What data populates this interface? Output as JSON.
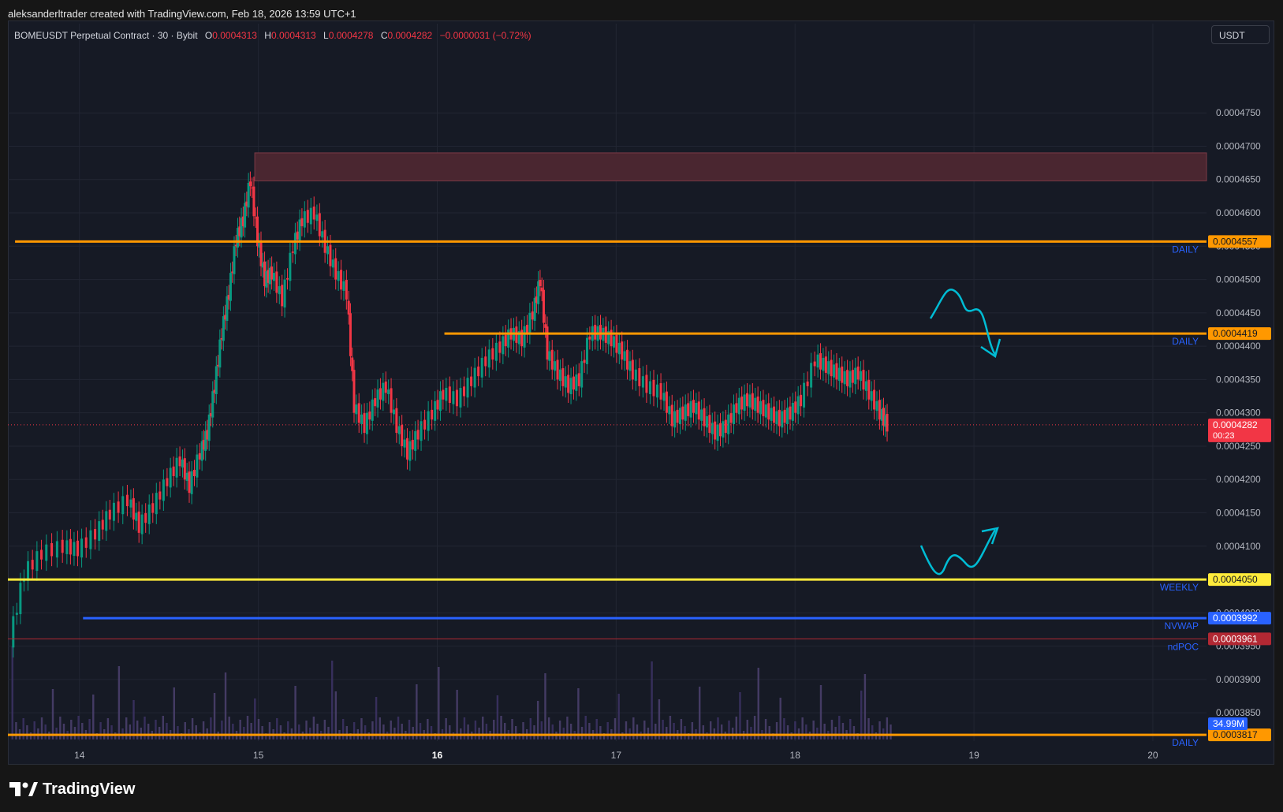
{
  "caption": "aleksanderltrader created with TradingView.com, Feb 18, 2026 13:59 UTC+1",
  "legend": {
    "symbol": "BOMEUSDT Perpetual Contract · 30 · Bybit",
    "o_label": "O",
    "o": "0.0004313",
    "h_label": "H",
    "h": "0.0004313",
    "l_label": "L",
    "l": "0.0004278",
    "c_label": "C",
    "c": "0.0004282",
    "change": "−0.0000031 (−0.72%)"
  },
  "currency": "USDT",
  "logo_text": "TradingView",
  "chart_data": {
    "type": "candlestick",
    "y_ticks": [
      "0.0003817",
      "0.0003850",
      "0.0003900",
      "0.0003950",
      "0.0004000",
      "0.0004050",
      "0.0004100",
      "0.0004150",
      "0.0004200",
      "0.0004250",
      "0.0004300",
      "0.0004350",
      "0.0004400",
      "0.0004450",
      "0.0004500",
      "0.0004550",
      "0.0004600",
      "0.0004650",
      "0.0004700",
      "0.0004750"
    ],
    "y_range": [
      0.000381,
      0.000482
    ],
    "x_ticks": [
      "14",
      "15",
      "16",
      "17",
      "18",
      "19",
      "20"
    ],
    "x_range": [
      13.6,
      20.3
    ],
    "last_price": "0.0004282",
    "countdown": "00:23",
    "ohlc_points": [
      [
        13.62,
        0.000396
      ],
      [
        13.7,
        0.000406
      ],
      [
        13.8,
        0.000409
      ],
      [
        13.92,
        0.00041
      ],
      [
        14.0,
        0.0004095
      ],
      [
        14.1,
        0.000412
      ],
      [
        14.18,
        0.000415
      ],
      [
        14.28,
        0.000417
      ],
      [
        14.34,
        0.000413
      ],
      [
        14.42,
        0.000416
      ],
      [
        14.5,
        0.00042
      ],
      [
        14.57,
        0.000423
      ],
      [
        14.62,
        0.000419
      ],
      [
        14.68,
        0.000424
      ],
      [
        14.72,
        0.000427
      ],
      [
        14.76,
        0.000434
      ],
      [
        14.8,
        0.000442
      ],
      [
        14.84,
        0.000448
      ],
      [
        14.88,
        0.000456
      ],
      [
        14.92,
        0.000459
      ],
      [
        14.96,
        0.000465
      ],
      [
        15.0,
        0.000456
      ],
      [
        15.04,
        0.00045
      ],
      [
        15.08,
        0.000451
      ],
      [
        15.14,
        0.000447
      ],
      [
        15.2,
        0.000455
      ],
      [
        15.25,
        0.000459
      ],
      [
        15.32,
        0.00046
      ],
      [
        15.38,
        0.000455
      ],
      [
        15.44,
        0.000451
      ],
      [
        15.5,
        0.000448
      ],
      [
        15.54,
        0.000431
      ],
      [
        15.6,
        0.000428
      ],
      [
        15.66,
        0.000432
      ],
      [
        15.72,
        0.000434
      ],
      [
        15.78,
        0.000428
      ],
      [
        15.84,
        0.000424
      ],
      [
        15.9,
        0.000427
      ],
      [
        15.98,
        0.00043
      ],
      [
        16.04,
        0.000433
      ],
      [
        16.12,
        0.000432
      ],
      [
        16.2,
        0.000435
      ],
      [
        16.28,
        0.000438
      ],
      [
        16.36,
        0.00044
      ],
      [
        16.42,
        0.000442
      ],
      [
        16.48,
        0.000441
      ],
      [
        16.54,
        0.000445
      ],
      [
        16.58,
        0.00045
      ],
      [
        16.62,
        0.000439
      ],
      [
        16.68,
        0.000436
      ],
      [
        16.74,
        0.000434
      ],
      [
        16.8,
        0.000435
      ],
      [
        16.86,
        0.000442
      ],
      [
        16.92,
        0.000442
      ],
      [
        16.98,
        0.000441
      ],
      [
        17.04,
        0.000439
      ],
      [
        17.1,
        0.000436
      ],
      [
        17.18,
        0.000434
      ],
      [
        17.26,
        0.000433
      ],
      [
        17.32,
        0.000429
      ],
      [
        17.38,
        0.00043
      ],
      [
        17.44,
        0.000431
      ],
      [
        17.5,
        0.000429
      ],
      [
        17.56,
        0.000427
      ],
      [
        17.62,
        0.000428
      ],
      [
        17.68,
        0.000431
      ],
      [
        17.74,
        0.000432
      ],
      [
        17.8,
        0.000431
      ],
      [
        17.86,
        0.00043
      ],
      [
        17.92,
        0.000429
      ],
      [
        17.98,
        0.00043
      ],
      [
        18.04,
        0.000432
      ],
      [
        18.12,
        0.000438
      ],
      [
        18.18,
        0.000437
      ],
      [
        18.24,
        0.000436
      ],
      [
        18.3,
        0.000435
      ],
      [
        18.36,
        0.000436
      ],
      [
        18.42,
        0.000433
      ],
      [
        18.48,
        0.00043
      ],
      [
        18.52,
        0.0004282
      ]
    ],
    "levels": [
      {
        "label": "DAILY",
        "price_label": "0.0004557",
        "price": 0.0004557,
        "color": "#ff9800",
        "x_start": 13.64
      },
      {
        "label": "DAILY",
        "price_label": "0.0004419",
        "price": 0.0004419,
        "color": "#ff9800",
        "x_start": 16.04
      },
      {
        "label": "WEEKLY",
        "price_label": "0.0004050",
        "price": 0.000405,
        "color": "#ffeb3b",
        "x_start": 13.6
      },
      {
        "label": "NVWAP",
        "price_label": "0.0003992",
        "price": 0.0003992,
        "color": "#2962ff",
        "x_start": 14.02
      },
      {
        "label": "ndPOC",
        "price_label": "0.0003961",
        "price": 0.0003961,
        "color": "#b22833",
        "x_start": 13.6
      },
      {
        "label": "DAILY",
        "price_label": "0.0003817",
        "price": 0.0003817,
        "color": "#ff9800",
        "x_start": 13.6
      }
    ],
    "zone": {
      "price_top": 0.000469,
      "price_bottom": 0.0004648,
      "x_start": 14.98,
      "color": "#4a2630"
    },
    "volume_label": "34.99M"
  }
}
